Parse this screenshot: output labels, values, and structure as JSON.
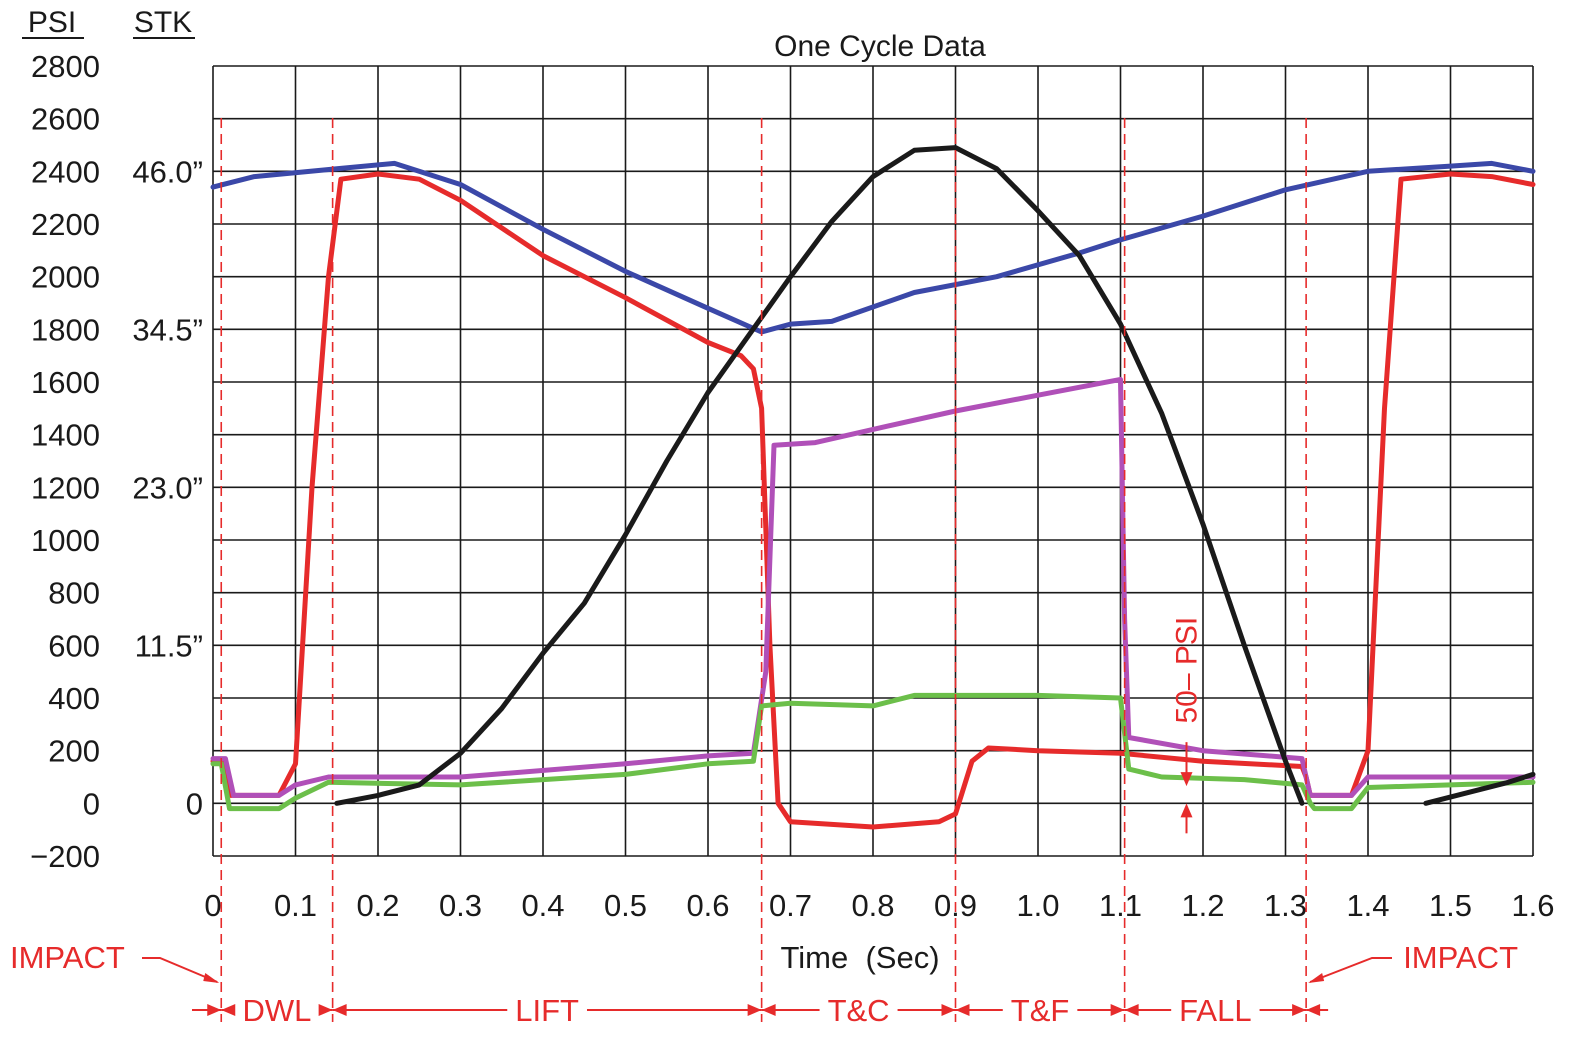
{
  "chart_data": {
    "type": "line",
    "title": "One Cycle Data",
    "xlabel": "Time  (Sec)",
    "left_axis_headers": {
      "psi": "PSI",
      "stk": "STK"
    },
    "xlim": [
      0,
      1.6
    ],
    "ylim": [
      -200,
      2800
    ],
    "x_ticks": [
      0,
      0.1,
      0.2,
      0.3,
      0.4,
      0.5,
      0.6,
      0.7,
      0.8,
      0.9,
      1.0,
      1.1,
      1.2,
      1.3,
      1.4,
      1.5,
      1.6
    ],
    "x_tick_labels": [
      "0",
      "0.1",
      "0.2",
      "0.3",
      "0.4",
      "0.5",
      "0.6",
      "0.7",
      "0.8",
      "0.9",
      "1.0",
      "1.1",
      "1.2",
      "1.3",
      "1.4",
      "1.5",
      "1.6"
    ],
    "psi_ticks": [
      2800,
      2600,
      2400,
      2200,
      2000,
      1800,
      1600,
      1400,
      1200,
      1000,
      800,
      600,
      400,
      200,
      0,
      -200
    ],
    "psi_tick_labels": [
      "2800",
      "2600",
      "2400",
      "2200",
      "2000",
      "1800",
      "1600",
      "1400",
      "1200",
      "1000",
      "800",
      "600",
      "400",
      "200",
      "0",
      "−200"
    ],
    "stk_ticks": [
      {
        "at_psi": 2400,
        "label": "46.0”"
      },
      {
        "at_psi": 1800,
        "label": "34.5”"
      },
      {
        "at_psi": 1200,
        "label": "23.0”"
      },
      {
        "at_psi": 600,
        "label": "11.5”"
      },
      {
        "at_psi": 0,
        "label": "0"
      }
    ],
    "grid": true,
    "series": [
      {
        "color": "#3b48a8",
        "points": [
          [
            0,
            2340
          ],
          [
            0.05,
            2380
          ],
          [
            0.15,
            2410
          ],
          [
            0.22,
            2430
          ],
          [
            0.3,
            2350
          ],
          [
            0.4,
            2180
          ],
          [
            0.5,
            2020
          ],
          [
            0.6,
            1880
          ],
          [
            0.665,
            1790
          ],
          [
            0.7,
            1820
          ],
          [
            0.75,
            1830
          ],
          [
            0.85,
            1940
          ],
          [
            0.95,
            2000
          ],
          [
            1.05,
            2090
          ],
          [
            1.1,
            2140
          ],
          [
            1.2,
            2230
          ],
          [
            1.3,
            2330
          ],
          [
            1.4,
            2400
          ],
          [
            1.5,
            2420
          ],
          [
            1.55,
            2430
          ],
          [
            1.6,
            2400
          ]
        ]
      },
      {
        "color": "#e62b2b",
        "points": [
          [
            0,
            160
          ],
          [
            0.01,
            160
          ],
          [
            0.02,
            30
          ],
          [
            0.08,
            30
          ],
          [
            0.1,
            150
          ],
          [
            0.12,
            1200
          ],
          [
            0.14,
            2000
          ],
          [
            0.155,
            2370
          ],
          [
            0.2,
            2390
          ],
          [
            0.25,
            2370
          ],
          [
            0.3,
            2290
          ],
          [
            0.4,
            2080
          ],
          [
            0.5,
            1920
          ],
          [
            0.6,
            1750
          ],
          [
            0.64,
            1700
          ],
          [
            0.655,
            1650
          ],
          [
            0.665,
            1500
          ],
          [
            0.675,
            600
          ],
          [
            0.685,
            0
          ],
          [
            0.7,
            -70
          ],
          [
            0.8,
            -90
          ],
          [
            0.88,
            -70
          ],
          [
            0.9,
            -40
          ],
          [
            0.92,
            160
          ],
          [
            0.94,
            210
          ],
          [
            1.0,
            200
          ],
          [
            1.1,
            190
          ],
          [
            1.2,
            160
          ],
          [
            1.32,
            140
          ],
          [
            1.325,
            100
          ],
          [
            1.33,
            30
          ],
          [
            1.38,
            30
          ],
          [
            1.4,
            200
          ],
          [
            1.42,
            1500
          ],
          [
            1.44,
            2370
          ],
          [
            1.5,
            2390
          ],
          [
            1.55,
            2380
          ],
          [
            1.6,
            2350
          ]
        ]
      },
      {
        "color": "#b050b8",
        "points": [
          [
            0,
            170
          ],
          [
            0.015,
            170
          ],
          [
            0.025,
            30
          ],
          [
            0.08,
            30
          ],
          [
            0.1,
            70
          ],
          [
            0.14,
            100
          ],
          [
            0.3,
            100
          ],
          [
            0.5,
            150
          ],
          [
            0.6,
            180
          ],
          [
            0.655,
            190
          ],
          [
            0.67,
            500
          ],
          [
            0.68,
            1360
          ],
          [
            0.73,
            1370
          ],
          [
            0.8,
            1420
          ],
          [
            0.9,
            1490
          ],
          [
            1.0,
            1550
          ],
          [
            1.1,
            1610
          ],
          [
            1.1,
            1610
          ],
          [
            1.105,
            700
          ],
          [
            1.11,
            250
          ],
          [
            1.2,
            200
          ],
          [
            1.32,
            170
          ],
          [
            1.325,
            100
          ],
          [
            1.33,
            30
          ],
          [
            1.38,
            30
          ],
          [
            1.4,
            100
          ],
          [
            1.5,
            100
          ],
          [
            1.6,
            100
          ]
        ]
      },
      {
        "color": "#6cbf4a",
        "points": [
          [
            0,
            150
          ],
          [
            0.01,
            150
          ],
          [
            0.02,
            -20
          ],
          [
            0.08,
            -20
          ],
          [
            0.1,
            20
          ],
          [
            0.14,
            80
          ],
          [
            0.3,
            70
          ],
          [
            0.5,
            110
          ],
          [
            0.6,
            150
          ],
          [
            0.655,
            160
          ],
          [
            0.665,
            370
          ],
          [
            0.7,
            380
          ],
          [
            0.8,
            370
          ],
          [
            0.85,
            410
          ],
          [
            1.0,
            410
          ],
          [
            1.1,
            400
          ],
          [
            1.11,
            130
          ],
          [
            1.15,
            100
          ],
          [
            1.25,
            90
          ],
          [
            1.32,
            70
          ],
          [
            1.33,
            0
          ],
          [
            1.335,
            -20
          ],
          [
            1.38,
            -20
          ],
          [
            1.4,
            60
          ],
          [
            1.5,
            70
          ],
          [
            1.6,
            80
          ]
        ]
      },
      {
        "color": "#1a1a1a",
        "points": [
          [
            0.15,
            0
          ],
          [
            0.2,
            30
          ],
          [
            0.25,
            70
          ],
          [
            0.3,
            190
          ],
          [
            0.35,
            360
          ],
          [
            0.4,
            570
          ],
          [
            0.45,
            760
          ],
          [
            0.5,
            1020
          ],
          [
            0.55,
            1300
          ],
          [
            0.6,
            1560
          ],
          [
            0.65,
            1780
          ],
          [
            0.7,
            2000
          ],
          [
            0.75,
            2210
          ],
          [
            0.8,
            2380
          ],
          [
            0.85,
            2480
          ],
          [
            0.9,
            2490
          ],
          [
            0.95,
            2410
          ],
          [
            1.0,
            2250
          ],
          [
            1.05,
            2080
          ],
          [
            1.1,
            1820
          ],
          [
            1.15,
            1480
          ],
          [
            1.2,
            1060
          ],
          [
            1.25,
            600
          ],
          [
            1.3,
            160
          ],
          [
            1.32,
            0
          ]
        ]
      },
      {
        "color": "#1a1a1a",
        "points": [
          [
            1.47,
            0
          ],
          [
            1.52,
            40
          ],
          [
            1.57,
            80
          ],
          [
            1.6,
            110
          ]
        ]
      }
    ],
    "phase_boundaries": [
      0.01,
      0.145,
      0.665,
      0.9,
      1.105,
      1.325
    ],
    "phases": [
      {
        "label": "DWL",
        "from": 0.01,
        "to": 0.145
      },
      {
        "label": "LIFT",
        "from": 0.145,
        "to": 0.665
      },
      {
        "label": "T&C",
        "from": 0.665,
        "to": 0.9
      },
      {
        "label": "T&F",
        "from": 0.9,
        "to": 1.105
      },
      {
        "label": "FALL",
        "from": 1.105,
        "to": 1.325
      }
    ],
    "annotations": {
      "impact_left": "IMPACT",
      "impact_right": "IMPACT",
      "psi_band_label": "50– PSI",
      "psi_band": {
        "x": 1.18,
        "from": 0,
        "to": 50
      }
    },
    "colors": {
      "annotation": "#e62b2b",
      "grid": "#1a1a1a"
    }
  }
}
